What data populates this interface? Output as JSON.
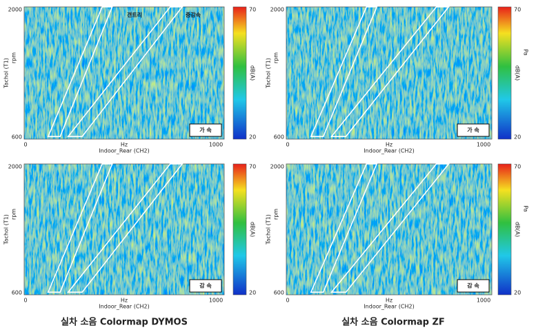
{
  "panels": [
    {
      "speed_label": "가 속",
      "x_axis": {
        "unit": "Hz",
        "title": "Indoor_Rear (CH2)",
        "ticks": [
          0,
          1000
        ]
      },
      "y_axis": {
        "title": "Tachol (T1)",
        "unit": "rpm",
        "ticks": [
          600,
          2000
        ]
      },
      "colorbar": {
        "label": "dB(A)",
        "ticks": [
          20,
          70
        ]
      },
      "annotations": [
        "갠트리",
        "증감속"
      ]
    },
    {
      "speed_label": "가 속",
      "x_axis": {
        "unit": "Hz",
        "title": "Indoor_Rear (CH2)",
        "ticks": [
          0,
          1000
        ]
      },
      "y_axis": {
        "title": "Tachol (T1)",
        "unit": "rpm",
        "ticks": [
          600,
          2000
        ]
      },
      "colorbar": {
        "label": "dB(A)",
        "unit": "Pa",
        "ticks": [
          20,
          70
        ]
      }
    },
    {
      "speed_label": "감 속",
      "x_axis": {
        "unit": "Hz",
        "title": "Indoor_Rear (CH2)",
        "ticks": [
          0,
          1000
        ]
      },
      "y_axis": {
        "title": "Tachol (T1)",
        "unit": "rpm",
        "ticks": [
          600,
          2000
        ]
      },
      "colorbar": {
        "label": "dB(A)",
        "ticks": [
          20,
          70
        ]
      }
    },
    {
      "speed_label": "감 속",
      "x_axis": {
        "unit": "Hz",
        "title": "Indoor_Rear (CH2)",
        "ticks": [
          0,
          1000
        ]
      },
      "y_axis": {
        "title": "Tachol (T1)",
        "unit": "rpm",
        "ticks": [
          600,
          2000
        ]
      },
      "colorbar": {
        "label": "dB(A)",
        "unit": "Pa",
        "ticks": [
          20,
          70
        ]
      }
    }
  ],
  "captions": [
    "실차 소음 Colormap DYMOS",
    "실차 소음 Colormap ZF"
  ]
}
